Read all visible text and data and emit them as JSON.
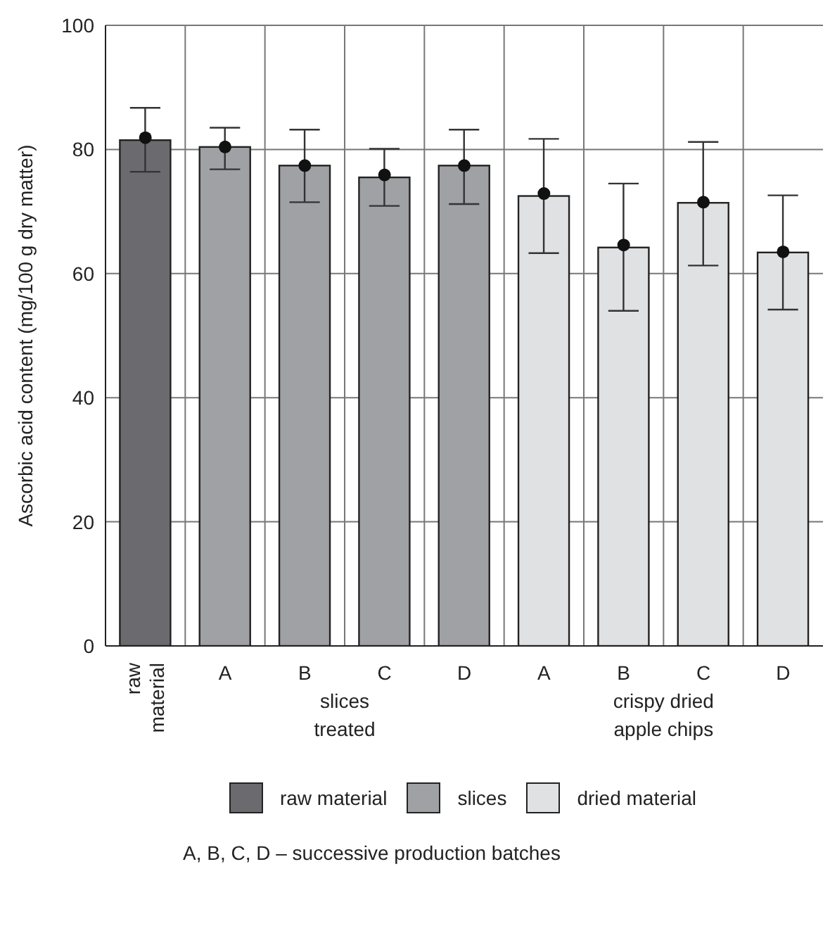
{
  "chart_data": {
    "type": "bar",
    "ylabel": "Ascorbic acid content (mg/100 g dry matter)",
    "categories": [
      "raw material",
      "A",
      "B",
      "C",
      "D",
      "A",
      "B",
      "C",
      "D"
    ],
    "series": [
      {
        "name": "raw material",
        "color": "#6b6b6f",
        "values": [
          81.5,
          null,
          null,
          null,
          null,
          null,
          null,
          null,
          null
        ],
        "errors": [
          [
            76.4,
            86.7
          ],
          null,
          null,
          null,
          null,
          null,
          null,
          null,
          null
        ]
      },
      {
        "name": "slices",
        "color": "#a0a1a5",
        "values": [
          null,
          80.4,
          77.4,
          75.5,
          77.4,
          null,
          null,
          null,
          null
        ],
        "errors": [
          null,
          [
            76.8,
            83.5
          ],
          [
            71.5,
            83.2
          ],
          [
            70.9,
            80.1
          ],
          [
            71.2,
            83.2
          ],
          null,
          null,
          null,
          null
        ]
      },
      {
        "name": "dried material",
        "color": "#e0e1e3",
        "values": [
          null,
          null,
          null,
          null,
          null,
          72.5,
          64.2,
          71.4,
          63.4
        ],
        "errors": [
          null,
          null,
          null,
          null,
          null,
          [
            63.3,
            81.7
          ],
          [
            54.0,
            74.5
          ],
          [
            61.3,
            81.2
          ],
          [
            54.2,
            72.6
          ]
        ]
      },
      {
        "type": "scatter",
        "color": "#111111",
        "values": [
          81.9,
          80.4,
          77.4,
          75.9,
          77.4,
          72.9,
          64.6,
          71.5,
          63.5
        ]
      }
    ],
    "stacked": true,
    "marker": "circle",
    "ylim": [
      0,
      100
    ],
    "yticks": [
      0,
      20,
      40,
      60,
      80,
      100
    ],
    "grid": true,
    "legend": "bottom",
    "annotations": [
      "slices\ntreated",
      "crispy dried\napple chips",
      "A, B, C, D – successive production batches"
    ]
  }
}
